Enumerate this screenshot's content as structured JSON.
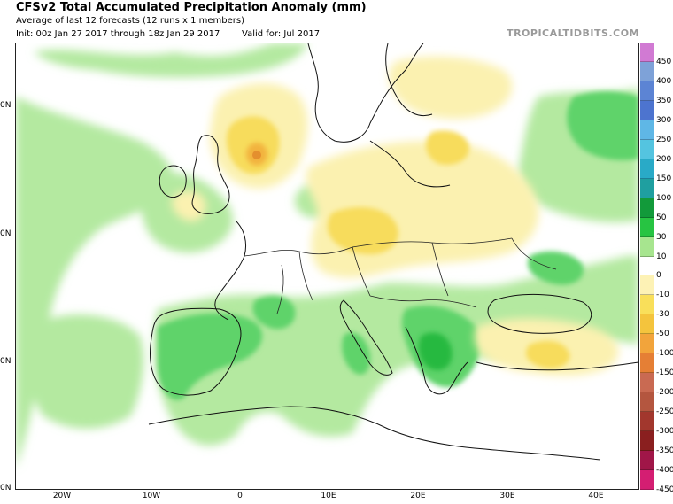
{
  "header": {
    "title": "CFSv2 Total Accumulated Precipitation Anomaly (mm)",
    "subtitle": "Average of last 12 forecasts (12 runs x 1 members)",
    "init": "Init: 00z Jan 27 2017 through 18z Jan 29 2017",
    "valid": "Valid for: Jul 2017",
    "brand": "TROPICALTIDBITS.COM"
  },
  "map": {
    "region": "Europe",
    "longitude_labels": [
      "20W",
      "10W",
      "0",
      "10E",
      "20E",
      "30E",
      "40E"
    ],
    "latitude_labels": [
      "0N",
      "0N",
      "0N",
      "0N"
    ],
    "features": [
      {
        "name": "dry-anomaly-north-sea",
        "center_lon": 2,
        "center_lat": 57.5,
        "peak_mm": -50
      },
      {
        "name": "dry-anomaly-central-europe",
        "center_lon": 18,
        "center_lat": 52,
        "peak_mm": -10
      },
      {
        "name": "wet-anomaly-balkans",
        "center_lon": 22,
        "center_lat": 41.5,
        "peak_mm": 50
      },
      {
        "name": "wet-anomaly-iberia",
        "center_lon": -5,
        "center_lat": 40,
        "peak_mm": 30
      },
      {
        "name": "wet-anomaly-russia",
        "center_lon": 41,
        "center_lat": 58,
        "peak_mm": 30
      },
      {
        "name": "dry-anomaly-turkey",
        "center_lon": 33,
        "center_lat": 39.5,
        "peak_mm": -30
      }
    ]
  },
  "colorbar": {
    "labels": [
      "450",
      "400",
      "350",
      "300",
      "250",
      "200",
      "150",
      "100",
      "50",
      "30",
      "10",
      "0",
      "-10",
      "-30",
      "-50",
      "-100",
      "-150",
      "-200",
      "-250",
      "-300",
      "-350",
      "-400",
      "-450"
    ],
    "colors": [
      "#d17ad3",
      "#7ea2d8",
      "#5c84d4",
      "#4d74cf",
      "#5fb7e6",
      "#54c4e0",
      "#29aac7",
      "#1f9fa0",
      "#129a3a",
      "#27c442",
      "#a7e58f",
      "#ffffff",
      "#fdf2b5",
      "#f9df5a",
      "#f4c43d",
      "#f2a43b",
      "#e57f35",
      "#c96a52",
      "#b4563f",
      "#a2372d",
      "#8a1f1f",
      "#a01648",
      "#d41e72"
    ]
  }
}
